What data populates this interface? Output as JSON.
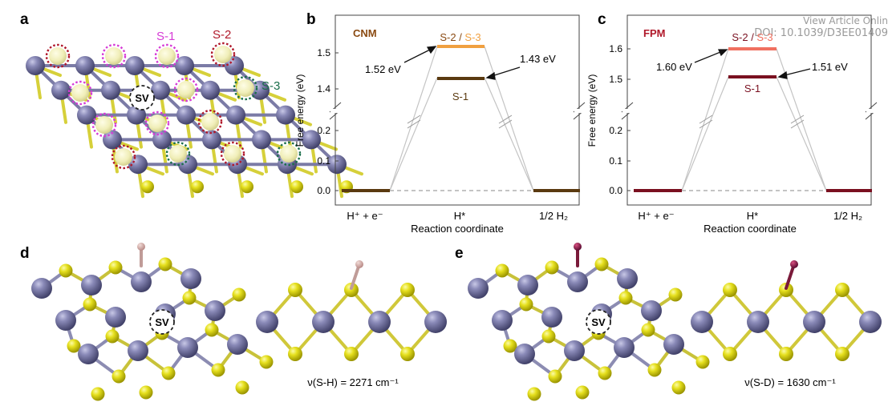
{
  "header": {
    "view_article": "View Article Onlin",
    "doi": "DOI: 10.1039/D3EE01409"
  },
  "panels": {
    "a": {
      "letter": "a",
      "site_labels": [
        {
          "text": "S-1",
          "color": "#d63bd6"
        },
        {
          "text": "S-2",
          "color": "#b0182a"
        },
        {
          "text": "S-3",
          "color": "#1a6e4a"
        }
      ],
      "vacancy": "SV"
    },
    "b": {
      "letter": "b",
      "tag": "CNM",
      "tag_color": "#8a4a12",
      "level_label_top": [
        "S-2",
        " / ",
        "S-3"
      ],
      "level_label_low": "S-1",
      "annot_left": "1.52 eV",
      "annot_right": "1.43 eV"
    },
    "c": {
      "letter": "c",
      "tag": "FPM",
      "tag_color": "#b0182a",
      "level_label_top": [
        "S-2",
        " / ",
        "S-3"
      ],
      "level_label_low": "S-1",
      "annot_left": "1.60 eV",
      "annot_right": "1.51 eV"
    },
    "d": {
      "letter": "d",
      "vacancy": "SV",
      "caption": "ν(S-H) = 2271 cm⁻¹"
    },
    "e": {
      "letter": "e",
      "vacancy": "SV",
      "caption": "ν(S-D) = 1630 cm⁻¹"
    }
  },
  "axes": {
    "ylabel": "Free energy (eV)",
    "xlabel": "Reaction coordinate",
    "x_ticks": [
      "H⁺ + e⁻",
      "H*",
      "1/2 H₂"
    ],
    "b_y_ticks_upper": [
      "1.5",
      "1.4"
    ],
    "b_y_ticks_lower": [
      "0.2",
      "0.1",
      "0.0"
    ],
    "c_y_ticks_upper": [
      "1.6",
      "1.5"
    ],
    "c_y_ticks_lower": [
      "0.2",
      "0.1",
      "0.0"
    ]
  },
  "chart_data": [
    {
      "type": "line",
      "panel": "b",
      "title": "CNM",
      "xlabel": "Reaction coordinate",
      "ylabel": "Free energy (eV)",
      "categories": [
        "H⁺ + e⁻",
        "H*",
        "1/2 H₂"
      ],
      "axis_break": true,
      "series": [
        {
          "name": "S-2 / S-3",
          "values": [
            0.0,
            1.52,
            0.0
          ],
          "color": "#f0a040"
        },
        {
          "name": "S-1",
          "values": [
            0.0,
            1.43,
            0.0
          ],
          "color": "#5a3a10"
        }
      ],
      "annotations": [
        "1.52 eV",
        "1.43 eV"
      ]
    },
    {
      "type": "line",
      "panel": "c",
      "title": "FPM",
      "xlabel": "Reaction coordinate",
      "ylabel": "Free energy (eV)",
      "categories": [
        "H⁺ + e⁻",
        "H*",
        "1/2 H₂"
      ],
      "axis_break": true,
      "series": [
        {
          "name": "S-2 / S-3",
          "values": [
            0.0,
            1.6,
            0.0
          ],
          "color": "#f07060"
        },
        {
          "name": "S-1",
          "values": [
            0.0,
            1.51,
            0.0
          ],
          "color": "#7a1020"
        }
      ],
      "annotations": [
        "1.60 eV",
        "1.51 eV"
      ]
    }
  ]
}
